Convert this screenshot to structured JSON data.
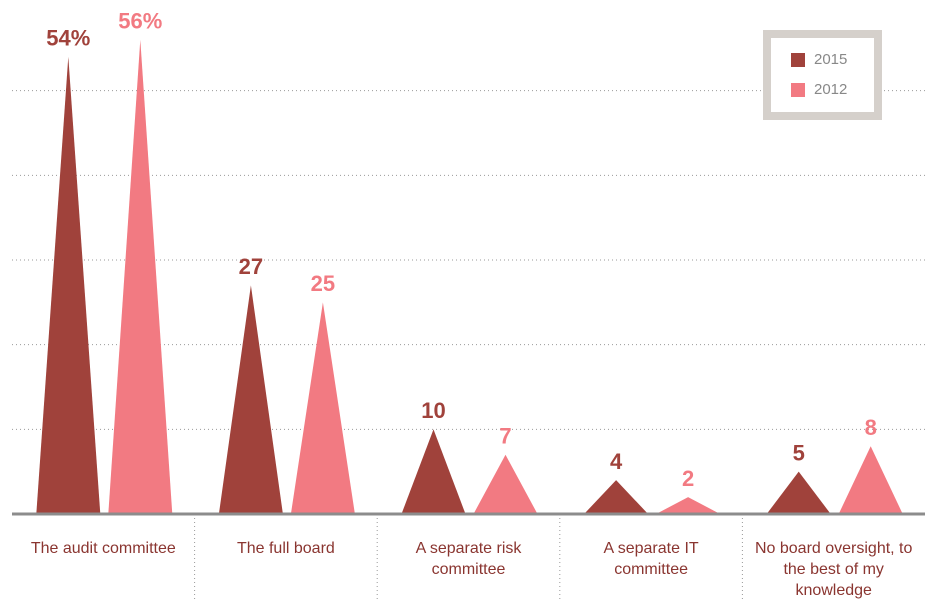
{
  "chart_data": {
    "type": "triangle-bar",
    "categories": [
      "The audit committee",
      "The full board",
      "A separate risk committee",
      "A separate IT committee",
      "No board oversight, to the best of my knowledge"
    ],
    "series": [
      {
        "name": "2015",
        "color": "#a0423b",
        "values": [
          54,
          27,
          10,
          4,
          5
        ],
        "value_labels": [
          "54%",
          "27",
          "10",
          "4",
          "5"
        ]
      },
      {
        "name": "2012",
        "color": "#f27a82",
        "values": [
          56,
          25,
          7,
          2,
          8
        ],
        "value_labels": [
          "56%",
          "25",
          "7",
          "2",
          "8"
        ]
      }
    ],
    "ylim": [
      0,
      60
    ],
    "yticks": [
      0,
      10,
      20,
      30,
      40,
      50
    ],
    "grid": true,
    "legend": "top-right"
  }
}
